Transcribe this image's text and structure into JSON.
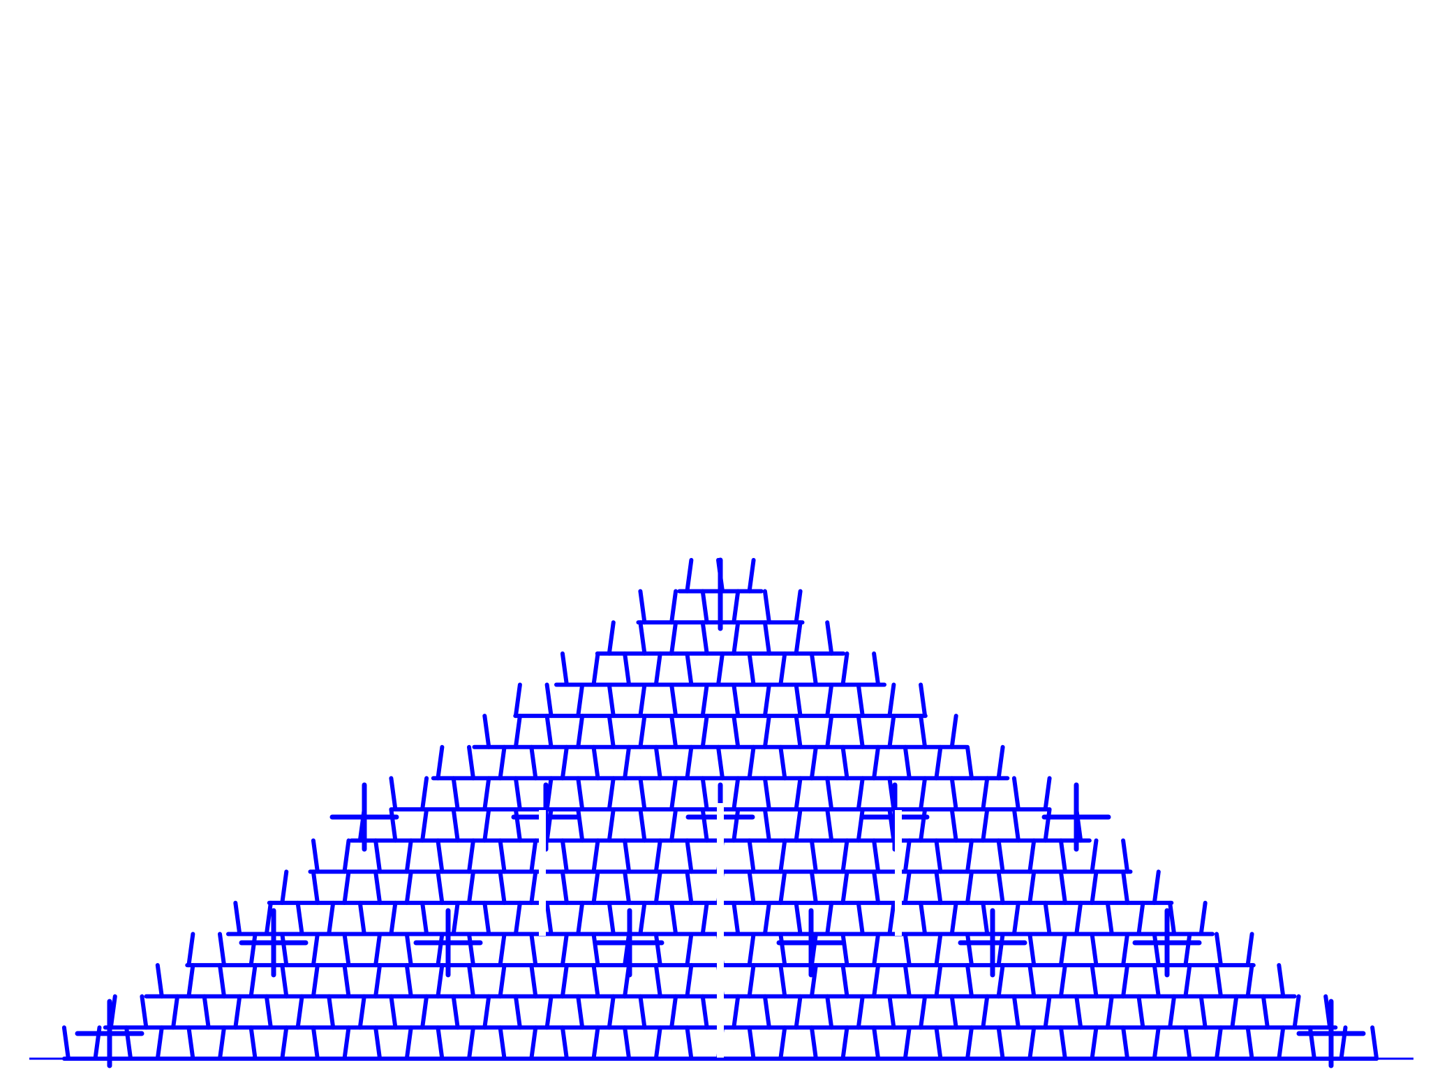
{
  "figure": {
    "type": "fractal-triangle-lattice",
    "line_color": "#0000ff",
    "background": "#ffffff",
    "levels": 4,
    "baseline": true,
    "description": ""
  }
}
